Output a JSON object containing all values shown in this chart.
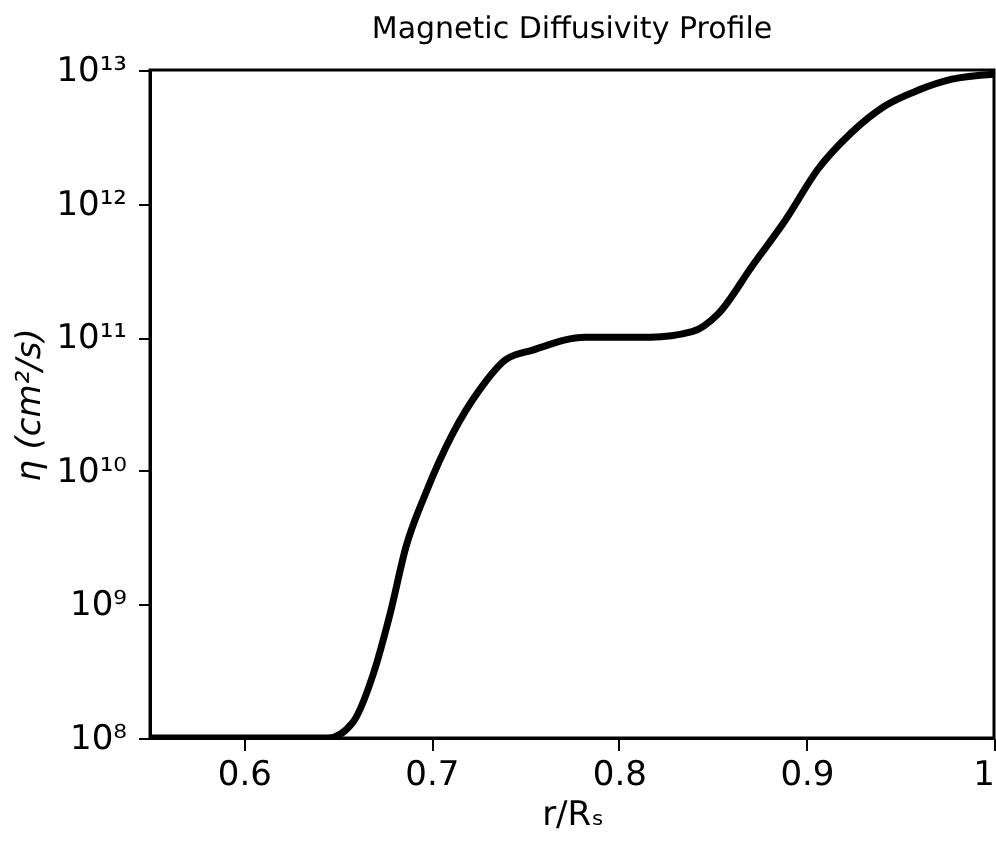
{
  "chart_data": {
    "type": "line",
    "title": "Magnetic Diffusivity Profile",
    "xlabel": "r/Rₛ",
    "ylabel": "η (cm²/s)",
    "x": [
      0.55,
      0.6,
      0.645,
      0.658,
      0.669,
      0.678,
      0.6865,
      0.697,
      0.7114,
      0.7255,
      0.7397,
      0.754,
      0.782,
      0.817,
      0.839,
      0.853,
      0.871,
      0.889,
      0.906,
      0.924,
      0.942,
      0.96,
      0.977,
      1.0
    ],
    "series": [
      {
        "color": "#000000",
        "values": [
          100000000.0,
          100000000.0,
          100000000.0,
          130000000.0,
          300000000.0,
          850000000.0,
          2700000000.0,
          6800000000.0,
          19000000000.0,
          40000000000.0,
          68000000000.0,
          80000000000.0,
          100000000000.0,
          100000000000.0,
          110000000000.0,
          150000000000.0,
          340000000000.0,
          760000000000.0,
          1800000000000.0,
          3400000000000.0,
          5400000000000.0,
          7100000000000.0,
          8500000000000.0,
          9300000000000.0
        ]
      }
    ],
    "xlim": [
      0.55,
      1.0
    ],
    "xticks": [
      0.6,
      0.7,
      0.8,
      0.9,
      1
    ],
    "ylim": [
      100000000.0,
      10000000000000.0
    ],
    "log": true,
    "yticks": [
      {
        "value": 100000000.0,
        "label": "10⁸"
      },
      {
        "value": 1000000000.0,
        "label": "10⁹"
      },
      {
        "value": 10000000000.0,
        "label": "10¹⁰"
      },
      {
        "value": 100000000000.0,
        "label": "10¹¹"
      },
      {
        "value": 1000000000000.0,
        "label": "10¹²"
      },
      {
        "value": 10000000000000.0,
        "label": "10¹³"
      }
    ],
    "grid": false,
    "legend": false,
    "marker": "none",
    "line_style": "solid"
  }
}
